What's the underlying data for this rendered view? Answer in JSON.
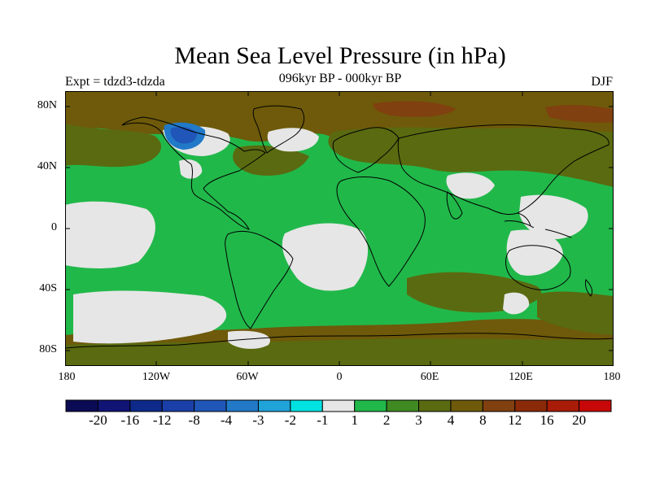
{
  "title": "Mean Sea Level Pressure (in hPa)",
  "subtitle": "096kyr BP - 000kyr BP",
  "experiment": "Expt = tdzd3-tdzda",
  "season": "DJF",
  "lat_ticks": [
    "80N",
    "40N",
    "0",
    "40S",
    "80S"
  ],
  "lon_ticks": [
    "180",
    "120W",
    "60W",
    "0",
    "60E",
    "120E",
    "180"
  ],
  "colorbar": {
    "colors": [
      "#0b0b55",
      "#101575",
      "#0d2a8a",
      "#1a3fa8",
      "#1f56b8",
      "#2179c8",
      "#1fa3d8",
      "#00e2e2",
      "#e6e6e6",
      "#21b84a",
      "#3f8a22",
      "#5a6a10",
      "#6e5a0a",
      "#804010",
      "#8a2a08",
      "#a81c08",
      "#c80808"
    ],
    "labels": [
      "-20",
      "-16",
      "-12",
      "-8",
      "-4",
      "-3",
      "-2",
      "-1",
      "1",
      "2",
      "3",
      "4",
      "8",
      "12",
      "16",
      "20"
    ]
  },
  "palette": {
    "ocean_green": "#21b84a",
    "land_olive": "#5a6a10",
    "land_brown": "#6e5a0a",
    "neutral_gray": "#e6e6e6",
    "deep_blue": "#1f56b8",
    "light_blue": "#2179c8",
    "high_red": "#804010"
  }
}
